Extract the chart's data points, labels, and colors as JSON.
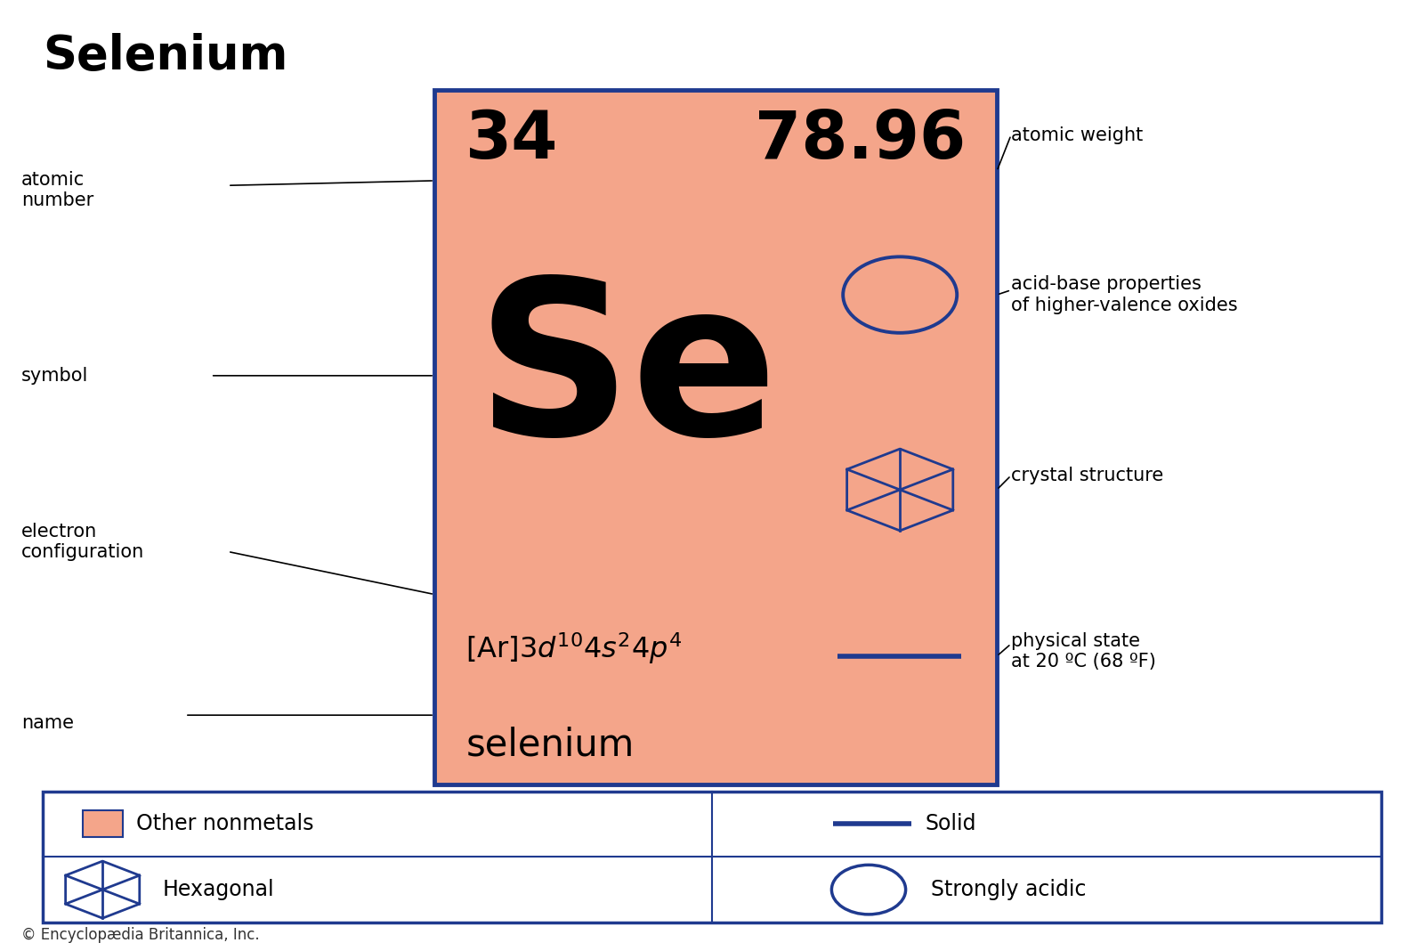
{
  "title": "Selenium",
  "atomic_number": "34",
  "atomic_weight": "78.96",
  "symbol": "Se",
  "name": "selenium",
  "element_color": "#F4A58A",
  "border_color": "#1F3A8F",
  "text_color": "#000000",
  "annotation_color": "#000000",
  "bg_color": "#FFFFFF",
  "legend_border_color": "#1F3A8F",
  "copyright": "© Encyclopædia Britannica, Inc.",
  "physical_state_label": "physical state\nat 20 ºC (68 ºF)"
}
